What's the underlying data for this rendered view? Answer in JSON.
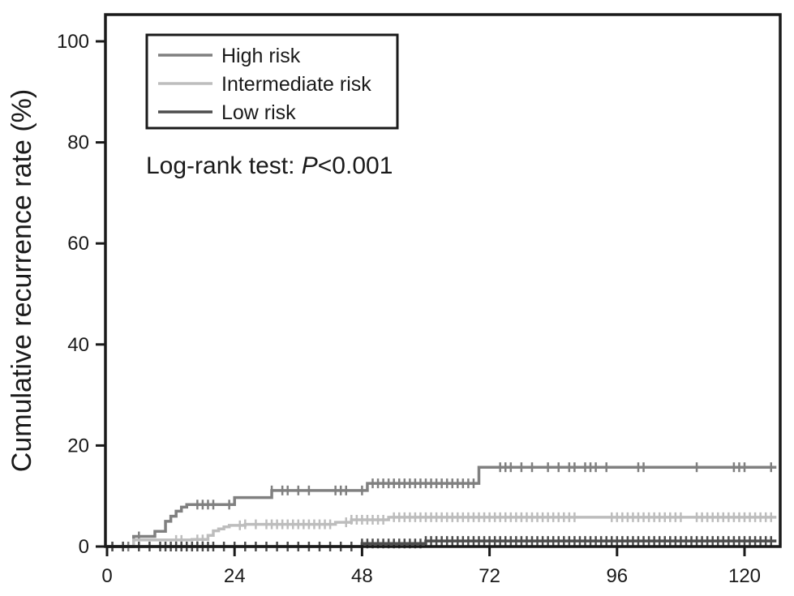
{
  "chart_data": {
    "type": "line",
    "title": "",
    "xlabel": "",
    "ylabel": "Cumulative recurrence rate (%)",
    "xlim": [
      0,
      126
    ],
    "ylim": [
      0,
      105
    ],
    "xticks": [
      0,
      24,
      48,
      72,
      96,
      120
    ],
    "yticks": [
      0,
      20,
      40,
      60,
      80,
      100
    ],
    "grid": false,
    "legend_position": "top-left",
    "annotation": {
      "prefix": "Log-rank test: ",
      "italic": "P",
      "suffix": "<0.001"
    },
    "series": [
      {
        "name": "High risk",
        "color": "#808080",
        "x": [
          0,
          5,
          9,
          11,
          12,
          13,
          14,
          15,
          24,
          31,
          49,
          70
        ],
        "y": [
          0,
          2,
          3,
          5,
          6,
          7,
          7.8,
          8.3,
          9.7,
          11.1,
          12.5,
          15.7
        ],
        "censored": [
          1,
          4,
          6,
          17,
          18,
          19,
          20,
          23,
          31,
          33,
          34,
          36,
          38,
          43,
          44,
          45,
          48,
          50,
          51,
          52,
          53,
          54,
          55,
          56,
          57,
          58,
          59,
          60,
          61,
          62,
          63,
          64,
          65,
          66,
          67,
          68,
          69,
          74,
          75,
          76,
          78,
          80,
          83,
          85,
          87,
          88,
          90,
          91,
          92,
          94,
          100,
          101,
          111,
          118,
          119,
          120,
          125
        ]
      },
      {
        "name": "Intermediate risk",
        "color": "#bdbdbd",
        "x": [
          0,
          5,
          16,
          19,
          20,
          21,
          22,
          23,
          26,
          43,
          46,
          53
        ],
        "y": [
          0,
          1.3,
          1.4,
          2.2,
          3.1,
          3.5,
          3.9,
          4.2,
          4.4,
          4.8,
          5.3,
          5.8
        ],
        "censored": [
          1,
          3,
          13,
          14,
          17,
          18,
          25,
          26,
          28,
          30,
          31,
          32,
          33,
          34,
          35,
          36,
          37,
          38,
          39,
          40,
          41,
          42,
          45,
          46,
          47,
          48,
          49,
          50,
          51,
          52,
          54,
          55,
          56,
          57,
          58,
          59,
          60,
          61,
          62,
          63,
          64,
          65,
          66,
          67,
          68,
          69,
          70,
          71,
          72,
          73,
          74,
          75,
          76,
          77,
          78,
          79,
          80,
          81,
          82,
          83,
          84,
          85,
          86,
          87,
          88,
          95,
          96,
          97,
          98,
          99,
          100,
          101,
          102,
          103,
          104,
          105,
          106,
          107,
          108,
          111,
          112,
          113,
          114,
          115,
          116,
          117,
          118,
          119,
          120,
          121,
          122,
          123,
          124,
          125
        ]
      },
      {
        "name": "Low risk",
        "color": "#4d4d4d",
        "x": [
          0,
          48,
          60
        ],
        "y": [
          0,
          0.6,
          1.1
        ],
        "censored": [
          1,
          3,
          6,
          8,
          10,
          11,
          12,
          13,
          14,
          15,
          16,
          17,
          18,
          19,
          20,
          22,
          24,
          26,
          28,
          30,
          32,
          34,
          36,
          38,
          40,
          42,
          44,
          46,
          48,
          49,
          50,
          51,
          52,
          53,
          54,
          55,
          56,
          57,
          58,
          59,
          60,
          61,
          62,
          63,
          64,
          65,
          66,
          67,
          68,
          69,
          70,
          71,
          72,
          73,
          74,
          75,
          76,
          77,
          78,
          79,
          80,
          81,
          82,
          83,
          84,
          85,
          86,
          87,
          88,
          89,
          90,
          91,
          92,
          93,
          94,
          95,
          96,
          97,
          98,
          99,
          100,
          101,
          102,
          103,
          104,
          105,
          106,
          107,
          108,
          109,
          110,
          111,
          112,
          113,
          114,
          115,
          116,
          117,
          118,
          119,
          120,
          121,
          122,
          123,
          124,
          125
        ]
      }
    ]
  }
}
